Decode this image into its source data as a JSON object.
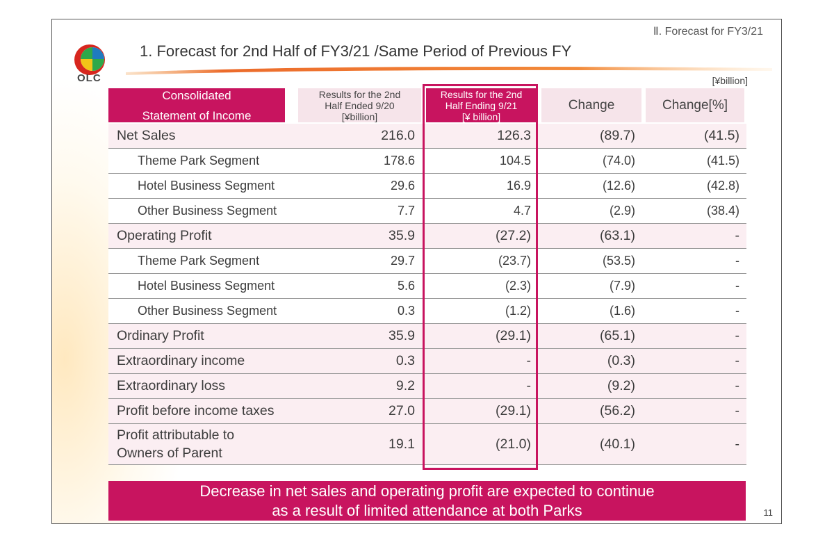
{
  "section_label": "Ⅱ. Forecast for FY3/21",
  "logo_text": "OLC",
  "title": "1. Forecast for 2nd Half of FY3/21 /Same Period of Previous FY",
  "unit": "[¥billion]",
  "header": {
    "col0_line1": "Consolidated",
    "col0_line2": "Statement of Income",
    "col1_line1": "Results for the 2nd",
    "col1_line2": "Half Ended 9/20",
    "col1_line3": "[¥billion]",
    "col2_line1": "Results for the 2nd",
    "col2_line2": "Half Ending 9/21",
    "col2_line3": "[¥ billion]",
    "col3": "Change",
    "col4": "Change[%]"
  },
  "rows": [
    {
      "label": "Net Sales",
      "prev": "216.0",
      "fcst": "126.3",
      "change": "(89.7)",
      "pct": "(41.5)"
    },
    {
      "label": "Theme Park Segment",
      "prev": "178.6",
      "fcst": "104.5",
      "change": "(74.0)",
      "pct": "(41.5)"
    },
    {
      "label": "Hotel Business Segment",
      "prev": "29.6",
      "fcst": "16.9",
      "change": "(12.6)",
      "pct": "(42.8)"
    },
    {
      "label": "Other Business Segment",
      "prev": "7.7",
      "fcst": "4.7",
      "change": "(2.9)",
      "pct": "(38.4)"
    },
    {
      "label": "Operating Profit",
      "prev": "35.9",
      "fcst": "(27.2)",
      "change": "(63.1)",
      "pct": "-"
    },
    {
      "label": "Theme Park Segment",
      "prev": "29.7",
      "fcst": "(23.7)",
      "change": "(53.5)",
      "pct": "-"
    },
    {
      "label": "Hotel Business Segment",
      "prev": "5.6",
      "fcst": "(2.3)",
      "change": "(7.9)",
      "pct": "-"
    },
    {
      "label": "Other Business Segment",
      "prev": "0.3",
      "fcst": "(1.2)",
      "change": "(1.6)",
      "pct": "-"
    },
    {
      "label": "Ordinary Profit",
      "prev": "35.9",
      "fcst": "(29.1)",
      "change": "(65.1)",
      "pct": "-"
    },
    {
      "label": "Extraordinary income",
      "prev": "0.3",
      "fcst": "-",
      "change": "(0.3)",
      "pct": "-"
    },
    {
      "label": "Extraordinary loss",
      "prev": "9.2",
      "fcst": "-",
      "change": "(9.2)",
      "pct": "-"
    },
    {
      "label": "Profit before income taxes",
      "prev": "27.0",
      "fcst": "(29.1)",
      "change": "(56.2)",
      "pct": "-"
    },
    {
      "label_line1": "Profit attributable to",
      "label_line2": "Owners of Parent",
      "prev": "19.1",
      "fcst": "(21.0)",
      "change": "(40.1)",
      "pct": "-"
    }
  ],
  "banner": {
    "line1": "Decrease in net sales and operating profit are expected to continue",
    "line2": "as a result of limited attendance at both Parks"
  },
  "page_number": "11",
  "colors": {
    "accent": "#c8145f",
    "row_tint": "#fbeef2",
    "header_tint": "#f6e4ea"
  }
}
